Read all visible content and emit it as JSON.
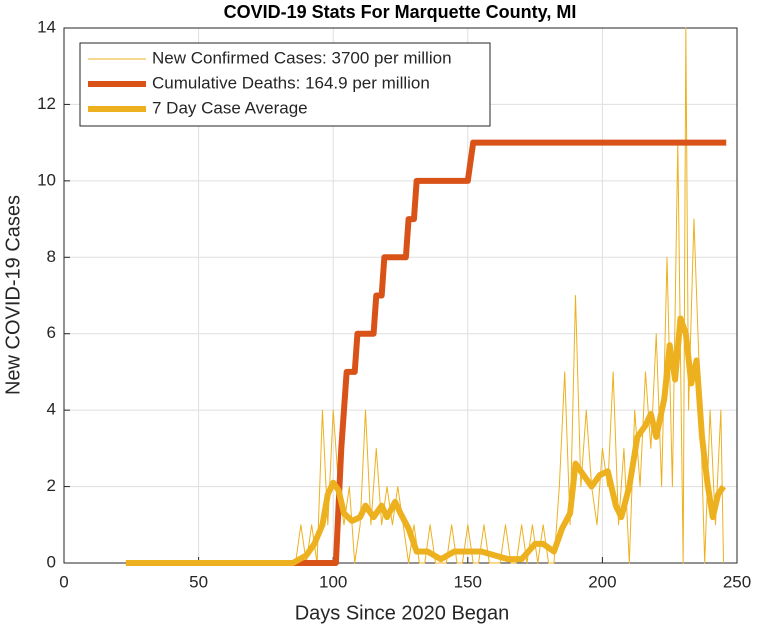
{
  "chart_data": {
    "type": "line",
    "title": "COVID-19 Stats For Marquette County, MI",
    "x_label": "Days Since 2020 Began",
    "y_label": "New COVID-19 Cases",
    "xlim": [
      0,
      250
    ],
    "xticks": [
      0,
      50,
      100,
      150,
      200,
      250
    ],
    "ylim": [
      0,
      14
    ],
    "yticks": [
      0,
      2,
      4,
      6,
      8,
      10,
      12,
      14
    ],
    "grid": true,
    "legend": "top-left",
    "series": [
      {
        "name": "New Confirmed Cases: 3700 per million",
        "color": "#EDB120",
        "width": 1,
        "x": [
          23,
          85,
          86,
          88,
          90,
          92,
          94,
          96,
          98,
          100,
          102,
          104,
          106,
          108,
          110,
          112,
          114,
          116,
          118,
          120,
          122,
          124,
          126,
          128,
          130,
          132,
          134,
          136,
          138,
          140,
          142,
          144,
          146,
          148,
          150,
          152,
          154,
          156,
          158,
          160,
          162,
          164,
          166,
          168,
          170,
          172,
          174,
          176,
          178,
          180,
          182,
          184,
          186,
          188,
          190,
          192,
          194,
          196,
          198,
          200,
          202,
          204,
          206,
          208,
          210,
          212,
          214,
          216,
          218,
          220,
          222,
          224,
          226,
          228,
          230,
          231,
          232,
          234,
          236,
          238,
          240,
          242,
          244,
          245
        ],
        "values": [
          0,
          0,
          0,
          1,
          0,
          1,
          0,
          4,
          1,
          4,
          2,
          1,
          2,
          0,
          1,
          4,
          1,
          3,
          1,
          2,
          1,
          2,
          1,
          0,
          1,
          0,
          0,
          1,
          0,
          0,
          0,
          1,
          0,
          0,
          1,
          0,
          0,
          1,
          0,
          0,
          0,
          1,
          0,
          0,
          1,
          0,
          1,
          0,
          1,
          0,
          0,
          2,
          5,
          1,
          7,
          2,
          4,
          2,
          1,
          3,
          2,
          5,
          1,
          3,
          0,
          4,
          2,
          5,
          3,
          6,
          2,
          8,
          2,
          11,
          0,
          14,
          4,
          9,
          5,
          0,
          4,
          1,
          4,
          0
        ]
      },
      {
        "name": "Cumulative Deaths: 164.9 per million",
        "color": "#D95319",
        "width": 6,
        "x": [
          23,
          101,
          103,
          104,
          105,
          108,
          109,
          115,
          116,
          118,
          119,
          127,
          128,
          130,
          131,
          150,
          152,
          246
        ],
        "values": [
          0,
          0,
          3,
          4,
          5,
          5,
          6,
          6,
          7,
          7,
          8,
          8,
          9,
          9,
          10,
          10,
          11,
          11
        ]
      },
      {
        "name": "7 Day Case Average",
        "color": "#EDB120",
        "width": 6,
        "x": [
          23,
          85,
          90,
          93,
          96,
          98,
          100,
          102,
          104,
          107,
          110,
          112,
          115,
          118,
          120,
          123,
          125,
          128,
          131,
          135,
          140,
          145,
          150,
          155,
          160,
          165,
          170,
          175,
          178,
          182,
          185,
          188,
          190,
          193,
          196,
          199,
          202,
          205,
          207,
          210,
          213,
          216,
          218,
          220,
          223,
          225,
          227,
          229,
          231,
          233,
          235,
          237,
          239,
          241,
          243,
          245
        ],
        "values": [
          0,
          0,
          0.2,
          0.5,
          1,
          1.8,
          2.1,
          1.9,
          1.3,
          1.1,
          1.2,
          1.5,
          1.2,
          1.5,
          1.2,
          1.6,
          1.3,
          0.9,
          0.3,
          0.3,
          0.1,
          0.3,
          0.3,
          0.3,
          0.2,
          0.1,
          0.1,
          0.5,
          0.5,
          0.3,
          0.9,
          1.3,
          2.6,
          2.3,
          2.0,
          2.3,
          2.4,
          1.5,
          1.2,
          2.0,
          3.3,
          3.6,
          3.9,
          3.3,
          4.3,
          5.7,
          4.8,
          6.4,
          6.0,
          4.7,
          5.3,
          3.3,
          2.1,
          1.2,
          1.8,
          2.0
        ]
      }
    ]
  }
}
